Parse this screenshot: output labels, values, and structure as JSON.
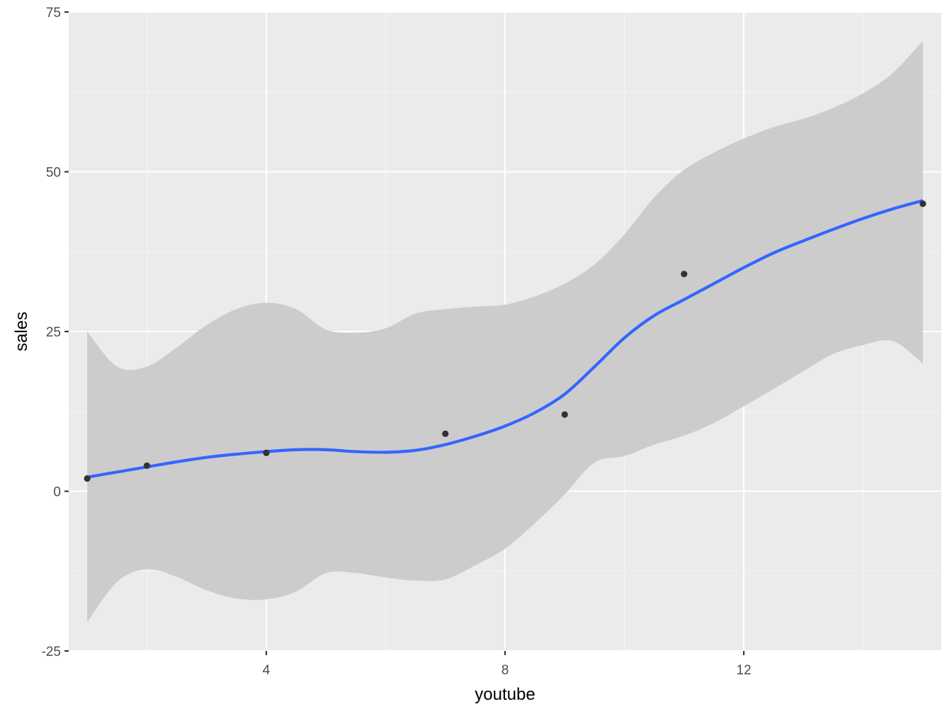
{
  "chart_data": {
    "type": "scatter",
    "xlabel": "youtube",
    "ylabel": "sales",
    "xlim": [
      0.69,
      15.31
    ],
    "ylim": [
      -25,
      75
    ],
    "x_ticks": [
      4,
      8,
      12
    ],
    "x_tick_labels": [
      "4",
      "8",
      "12"
    ],
    "x_minor_ticks": [
      2,
      6,
      10,
      14
    ],
    "y_ticks": [
      -25,
      0,
      25,
      50,
      75
    ],
    "y_tick_labels": [
      "-25",
      "0",
      "25",
      "50",
      "75"
    ],
    "y_minor_ticks": [
      -12.5,
      12.5,
      37.5,
      62.5
    ],
    "grid": true,
    "legend": "none",
    "points": [
      {
        "x": 1,
        "y": 2
      },
      {
        "x": 2,
        "y": 4
      },
      {
        "x": 4,
        "y": 6
      },
      {
        "x": 7,
        "y": 9
      },
      {
        "x": 9,
        "y": 12
      },
      {
        "x": 11,
        "y": 34
      },
      {
        "x": 15,
        "y": 45
      }
    ],
    "smooth": {
      "method": "loess",
      "x": [
        1,
        1.5,
        2,
        2.5,
        3,
        3.5,
        4,
        4.5,
        5,
        5.5,
        6,
        6.5,
        7,
        7.5,
        8,
        8.5,
        9,
        9.5,
        10,
        10.5,
        11,
        11.5,
        12,
        12.5,
        13,
        13.5,
        14,
        14.5,
        15
      ],
      "y": [
        2.2,
        3.0,
        3.8,
        4.6,
        5.3,
        5.8,
        6.2,
        6.5,
        6.5,
        6.2,
        6.1,
        6.4,
        7.3,
        8.6,
        10.2,
        12.3,
        15.2,
        19.5,
        24.0,
        27.5,
        30.0,
        32.5,
        35.0,
        37.3,
        39.2,
        41.0,
        42.7,
        44.2,
        45.5
      ],
      "upper": [
        25.0,
        19.5,
        19.5,
        22.5,
        26.0,
        28.5,
        29.5,
        28.5,
        25.3,
        24.8,
        25.5,
        27.8,
        28.5,
        28.9,
        29.2,
        30.5,
        32.5,
        35.5,
        40.2,
        46.0,
        50.3,
        53.0,
        55.2,
        57.0,
        58.3,
        60.0,
        62.3,
        65.5,
        70.5
      ],
      "lower": [
        -20.5,
        -14.2,
        -12.2,
        -13.4,
        -15.5,
        -16.8,
        -16.9,
        -15.7,
        -12.8,
        -12.8,
        -13.5,
        -14.0,
        -13.8,
        -11.6,
        -9.0,
        -5.0,
        -0.5,
        4.5,
        5.5,
        7.3,
        8.7,
        10.7,
        13.3,
        16.0,
        18.8,
        21.5,
        22.9,
        23.5,
        20.0
      ]
    },
    "colors": {
      "panel_background": "#ebebeb",
      "grid_major": "#ffffff",
      "grid_minor": "#f5f5f5",
      "ribbon": "#cccccc",
      "smooth_line": "#3366ff",
      "points": "#333333",
      "tick_label": "#4d4d4d",
      "axis_title": "#000000"
    }
  }
}
